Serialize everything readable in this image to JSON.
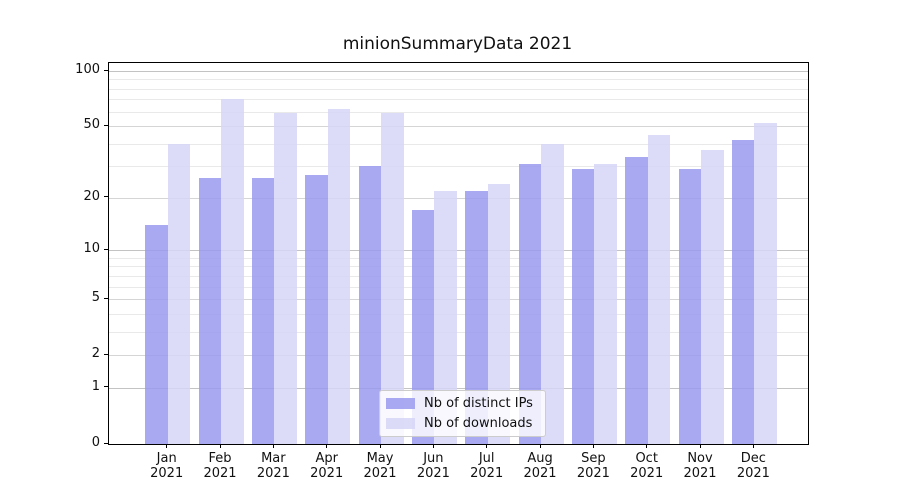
{
  "figure": {
    "title": "minionSummaryData 2021"
  },
  "chart_data": {
    "type": "bar",
    "title": "minionSummaryData 2021",
    "categories": [
      "Jan 2021",
      "Feb 2021",
      "Mar 2021",
      "Apr 2021",
      "May 2021",
      "Jun 2021",
      "Jul 2021",
      "Aug 2021",
      "Sep 2021",
      "Oct 2021",
      "Nov 2021",
      "Dec 2021"
    ],
    "series": [
      {
        "name": "Nb of distinct IPs",
        "color": "#a9a9f2",
        "fill_rgba": "rgba(154,154,240,0.85)",
        "values": [
          14,
          26,
          26,
          27,
          30,
          17,
          22,
          31,
          29,
          34,
          29,
          42
        ]
      },
      {
        "name": "Nb of downloads",
        "color": "#dcdcf7",
        "fill_rgba": "rgba(214,214,247,0.85)",
        "values": [
          40,
          70,
          59,
          62,
          59,
          22,
          24,
          40,
          31,
          45,
          37,
          52
        ]
      }
    ],
    "yscale": "symlog",
    "ylim": [
      0,
      110
    ],
    "ytick_labels": [
      "0",
      "1",
      "2",
      "5",
      "10",
      "20",
      "50",
      "100"
    ],
    "yticks_labeled": [
      0,
      1,
      2,
      5,
      10,
      20,
      50,
      100
    ],
    "decade_gridlines": [
      1,
      10,
      100
    ],
    "labeled_minor_gridlines": [
      2,
      5,
      20,
      50
    ],
    "minor_gridlines": [
      3,
      4,
      6,
      7,
      8,
      9,
      30,
      40,
      60,
      70,
      80,
      90
    ],
    "grid": true,
    "legend_position": "lower center"
  },
  "legend": {
    "items": [
      {
        "label": "Nb of distinct IPs"
      },
      {
        "label": "Nb of downloads"
      }
    ]
  },
  "colors": {
    "background": "#ffffff",
    "spine": "#000000",
    "text": "#111111",
    "decade_grid": "#c3c3c3",
    "labeled_minor_grid": "#d5d5d5",
    "minor_grid": "#e9e9e9"
  }
}
